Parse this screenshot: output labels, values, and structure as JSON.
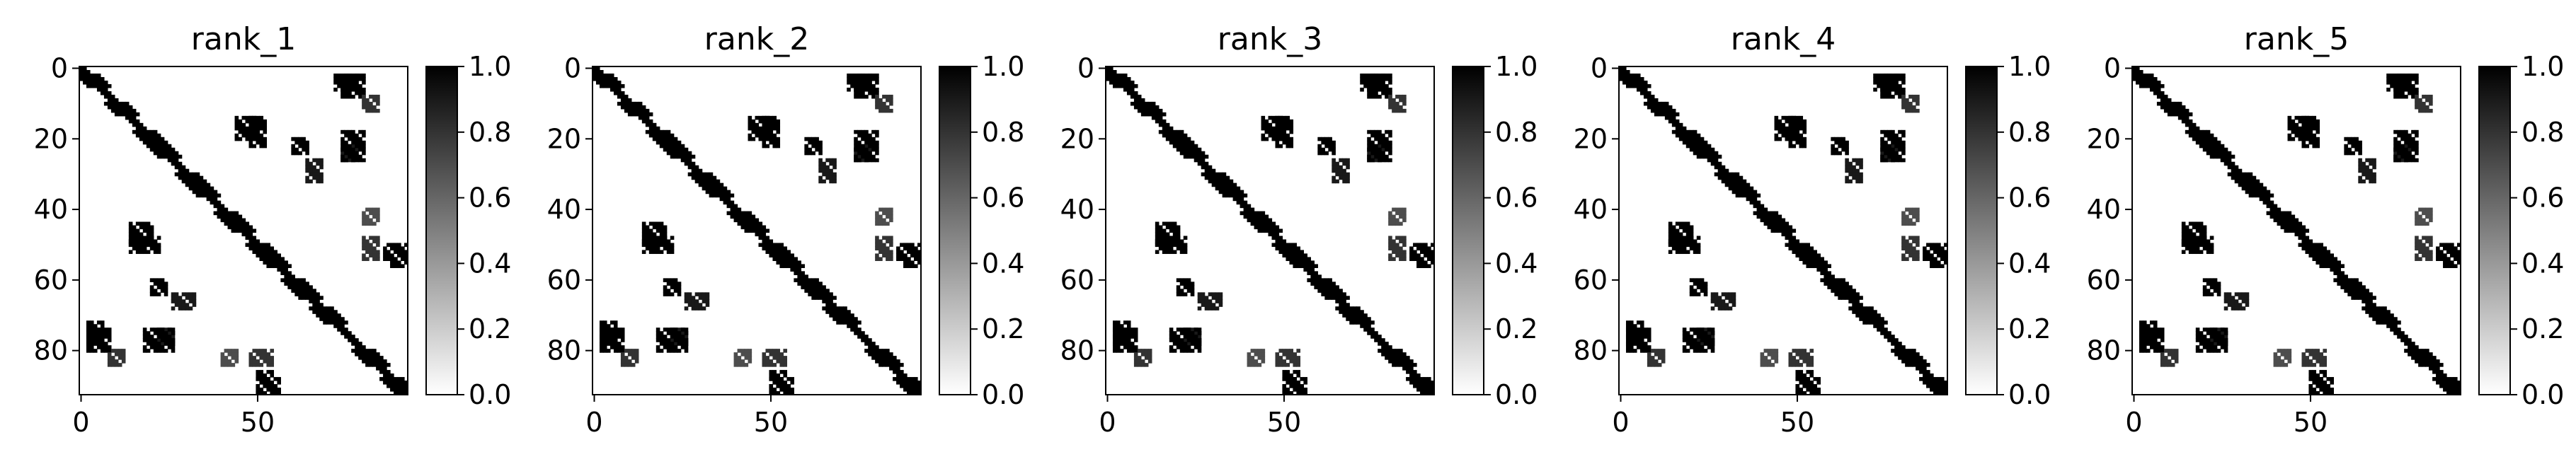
{
  "chart_data": [
    {
      "type": "heatmap",
      "title": "rank_1",
      "matrix_size": 93,
      "xticks": [
        0,
        50
      ],
      "yticks": [
        0,
        20,
        40,
        60,
        80
      ],
      "colorbar": {
        "ticks": [
          "0.0",
          "0.2",
          "0.4",
          "0.6",
          "0.8",
          "1.0"
        ],
        "range": [
          0,
          1
        ]
      },
      "colormap": "gray_r",
      "grid": false,
      "diagonal_band": [
        [
          2,
          5
        ],
        [
          10,
          13
        ],
        [
          18,
          25
        ],
        [
          30,
          36
        ],
        [
          41,
          46
        ],
        [
          50,
          56
        ],
        [
          60,
          65
        ],
        [
          68,
          72
        ],
        [
          80,
          84
        ],
        [
          88,
          92
        ]
      ],
      "off_diagonal_blocks": [
        {
          "rows": [
            2,
            8
          ],
          "cols": [
            74,
            80
          ],
          "v": 1
        },
        {
          "rows": [
            8,
            12
          ],
          "cols": [
            80,
            84
          ],
          "v": 0.8
        },
        {
          "rows": [
            14,
            20
          ],
          "cols": [
            44,
            50
          ],
          "v": 1
        },
        {
          "rows": [
            20,
            24
          ],
          "cols": [
            60,
            64
          ],
          "v": 1
        },
        {
          "rows": [
            22,
            26
          ],
          "cols": [
            74,
            78
          ],
          "v": 0.9
        },
        {
          "rows": [
            40,
            44
          ],
          "cols": [
            80,
            84
          ],
          "v": 0.7
        },
        {
          "rows": [
            48,
            52
          ],
          "cols": [
            14,
            22
          ],
          "v": 1
        },
        {
          "rows": [
            50,
            54
          ],
          "cols": [
            86,
            92
          ],
          "v": 1
        },
        {
          "rows": [
            64,
            68
          ],
          "cols": [
            26,
            32
          ],
          "v": 0.9
        },
        {
          "rows": [
            72,
            78
          ],
          "cols": [
            2,
            6
          ],
          "v": 1
        },
        {
          "rows": [
            74,
            80
          ],
          "cols": [
            18,
            26
          ],
          "v": 1
        },
        {
          "rows": [
            80,
            84
          ],
          "cols": [
            48,
            54
          ],
          "v": 0.8
        },
        {
          "rows": [
            88,
            92
          ],
          "cols": [
            50,
            56
          ],
          "v": 1
        }
      ]
    },
    {
      "type": "heatmap",
      "title": "rank_2",
      "matrix_size": 93,
      "xticks": [
        0,
        50
      ],
      "yticks": [
        0,
        20,
        40,
        60,
        80
      ],
      "colorbar": {
        "ticks": [
          "0.0",
          "0.2",
          "0.4",
          "0.6",
          "0.8",
          "1.0"
        ],
        "range": [
          0,
          1
        ]
      },
      "colormap": "gray_r",
      "grid": false,
      "diagonal_band": [
        [
          2,
          5
        ],
        [
          10,
          13
        ],
        [
          18,
          25
        ],
        [
          30,
          36
        ],
        [
          41,
          46
        ],
        [
          50,
          56
        ],
        [
          60,
          65
        ],
        [
          68,
          72
        ],
        [
          80,
          84
        ],
        [
          88,
          92
        ]
      ],
      "off_diagonal_blocks": [
        {
          "rows": [
            2,
            8
          ],
          "cols": [
            74,
            80
          ],
          "v": 1
        },
        {
          "rows": [
            8,
            12
          ],
          "cols": [
            80,
            84
          ],
          "v": 0.8
        },
        {
          "rows": [
            14,
            20
          ],
          "cols": [
            44,
            50
          ],
          "v": 1
        },
        {
          "rows": [
            20,
            24
          ],
          "cols": [
            60,
            64
          ],
          "v": 1
        },
        {
          "rows": [
            22,
            26
          ],
          "cols": [
            74,
            78
          ],
          "v": 0.9
        },
        {
          "rows": [
            40,
            44
          ],
          "cols": [
            80,
            84
          ],
          "v": 0.7
        },
        {
          "rows": [
            48,
            52
          ],
          "cols": [
            14,
            22
          ],
          "v": 1
        },
        {
          "rows": [
            50,
            54
          ],
          "cols": [
            86,
            92
          ],
          "v": 1
        },
        {
          "rows": [
            64,
            68
          ],
          "cols": [
            26,
            32
          ],
          "v": 0.9
        },
        {
          "rows": [
            72,
            78
          ],
          "cols": [
            2,
            6
          ],
          "v": 1
        },
        {
          "rows": [
            74,
            80
          ],
          "cols": [
            18,
            26
          ],
          "v": 1
        },
        {
          "rows": [
            80,
            84
          ],
          "cols": [
            48,
            54
          ],
          "v": 0.8
        },
        {
          "rows": [
            88,
            92
          ],
          "cols": [
            50,
            56
          ],
          "v": 1
        }
      ]
    },
    {
      "type": "heatmap",
      "title": "rank_3",
      "matrix_size": 93,
      "xticks": [
        0,
        50
      ],
      "yticks": [
        0,
        20,
        40,
        60,
        80
      ],
      "colorbar": {
        "ticks": [
          "0.0",
          "0.2",
          "0.4",
          "0.6",
          "0.8",
          "1.0"
        ],
        "range": [
          0,
          1
        ]
      },
      "colormap": "gray_r",
      "grid": false,
      "diagonal_band": [
        [
          2,
          5
        ],
        [
          10,
          13
        ],
        [
          18,
          25
        ],
        [
          30,
          36
        ],
        [
          41,
          46
        ],
        [
          50,
          56
        ],
        [
          60,
          65
        ],
        [
          68,
          72
        ],
        [
          80,
          84
        ],
        [
          88,
          92
        ]
      ],
      "off_diagonal_blocks": [
        {
          "rows": [
            2,
            8
          ],
          "cols": [
            74,
            80
          ],
          "v": 1
        },
        {
          "rows": [
            8,
            12
          ],
          "cols": [
            80,
            84
          ],
          "v": 0.8
        },
        {
          "rows": [
            14,
            20
          ],
          "cols": [
            44,
            50
          ],
          "v": 1
        },
        {
          "rows": [
            20,
            24
          ],
          "cols": [
            60,
            64
          ],
          "v": 1
        },
        {
          "rows": [
            22,
            26
          ],
          "cols": [
            74,
            78
          ],
          "v": 0.9
        },
        {
          "rows": [
            40,
            44
          ],
          "cols": [
            80,
            84
          ],
          "v": 0.7
        },
        {
          "rows": [
            48,
            52
          ],
          "cols": [
            14,
            22
          ],
          "v": 1
        },
        {
          "rows": [
            50,
            54
          ],
          "cols": [
            86,
            92
          ],
          "v": 1
        },
        {
          "rows": [
            64,
            68
          ],
          "cols": [
            26,
            32
          ],
          "v": 0.9
        },
        {
          "rows": [
            72,
            78
          ],
          "cols": [
            2,
            6
          ],
          "v": 1
        },
        {
          "rows": [
            74,
            80
          ],
          "cols": [
            18,
            26
          ],
          "v": 1
        },
        {
          "rows": [
            80,
            84
          ],
          "cols": [
            48,
            54
          ],
          "v": 0.8
        },
        {
          "rows": [
            88,
            92
          ],
          "cols": [
            50,
            56
          ],
          "v": 1
        }
      ]
    },
    {
      "type": "heatmap",
      "title": "rank_4",
      "matrix_size": 93,
      "xticks": [
        0,
        50
      ],
      "yticks": [
        0,
        20,
        40,
        60,
        80
      ],
      "colorbar": {
        "ticks": [
          "0.0",
          "0.2",
          "0.4",
          "0.6",
          "0.8",
          "1.0"
        ],
        "range": [
          0,
          1
        ]
      },
      "colormap": "gray_r",
      "grid": false,
      "diagonal_band": [
        [
          2,
          5
        ],
        [
          10,
          13
        ],
        [
          18,
          25
        ],
        [
          30,
          36
        ],
        [
          41,
          46
        ],
        [
          50,
          56
        ],
        [
          60,
          65
        ],
        [
          68,
          72
        ],
        [
          80,
          84
        ],
        [
          88,
          92
        ]
      ],
      "off_diagonal_blocks": [
        {
          "rows": [
            2,
            8
          ],
          "cols": [
            74,
            80
          ],
          "v": 1
        },
        {
          "rows": [
            8,
            12
          ],
          "cols": [
            80,
            84
          ],
          "v": 0.8
        },
        {
          "rows": [
            14,
            20
          ],
          "cols": [
            44,
            50
          ],
          "v": 1
        },
        {
          "rows": [
            20,
            24
          ],
          "cols": [
            60,
            64
          ],
          "v": 1
        },
        {
          "rows": [
            22,
            26
          ],
          "cols": [
            74,
            78
          ],
          "v": 0.9
        },
        {
          "rows": [
            40,
            44
          ],
          "cols": [
            80,
            84
          ],
          "v": 0.7
        },
        {
          "rows": [
            48,
            52
          ],
          "cols": [
            14,
            22
          ],
          "v": 1
        },
        {
          "rows": [
            50,
            54
          ],
          "cols": [
            86,
            92
          ],
          "v": 1
        },
        {
          "rows": [
            64,
            68
          ],
          "cols": [
            26,
            32
          ],
          "v": 0.9
        },
        {
          "rows": [
            72,
            78
          ],
          "cols": [
            2,
            6
          ],
          "v": 1
        },
        {
          "rows": [
            74,
            80
          ],
          "cols": [
            18,
            26
          ],
          "v": 1
        },
        {
          "rows": [
            80,
            84
          ],
          "cols": [
            48,
            54
          ],
          "v": 0.8
        },
        {
          "rows": [
            88,
            92
          ],
          "cols": [
            50,
            56
          ],
          "v": 1
        }
      ]
    },
    {
      "type": "heatmap",
      "title": "rank_5",
      "matrix_size": 93,
      "xticks": [
        0,
        50
      ],
      "yticks": [
        0,
        20,
        40,
        60,
        80
      ],
      "colorbar": {
        "ticks": [
          "0.0",
          "0.2",
          "0.4",
          "0.6",
          "0.8",
          "1.0"
        ],
        "range": [
          0,
          1
        ]
      },
      "colormap": "gray_r",
      "grid": false,
      "diagonal_band": [
        [
          2,
          5
        ],
        [
          10,
          13
        ],
        [
          18,
          25
        ],
        [
          30,
          36
        ],
        [
          41,
          46
        ],
        [
          50,
          56
        ],
        [
          60,
          65
        ],
        [
          68,
          72
        ],
        [
          80,
          84
        ],
        [
          88,
          92
        ]
      ],
      "off_diagonal_blocks": [
        {
          "rows": [
            2,
            8
          ],
          "cols": [
            74,
            80
          ],
          "v": 1
        },
        {
          "rows": [
            8,
            12
          ],
          "cols": [
            80,
            84
          ],
          "v": 0.8
        },
        {
          "rows": [
            14,
            20
          ],
          "cols": [
            44,
            50
          ],
          "v": 1
        },
        {
          "rows": [
            20,
            24
          ],
          "cols": [
            60,
            64
          ],
          "v": 1
        },
        {
          "rows": [
            22,
            26
          ],
          "cols": [
            74,
            78
          ],
          "v": 0.9
        },
        {
          "rows": [
            40,
            44
          ],
          "cols": [
            80,
            84
          ],
          "v": 0.7
        },
        {
          "rows": [
            48,
            52
          ],
          "cols": [
            14,
            22
          ],
          "v": 1
        },
        {
          "rows": [
            50,
            54
          ],
          "cols": [
            86,
            92
          ],
          "v": 1
        },
        {
          "rows": [
            64,
            68
          ],
          "cols": [
            26,
            32
          ],
          "v": 0.9
        },
        {
          "rows": [
            72,
            78
          ],
          "cols": [
            2,
            6
          ],
          "v": 1
        },
        {
          "rows": [
            74,
            80
          ],
          "cols": [
            18,
            26
          ],
          "v": 1
        },
        {
          "rows": [
            80,
            84
          ],
          "cols": [
            48,
            54
          ],
          "v": 0.8
        },
        {
          "rows": [
            88,
            92
          ],
          "cols": [
            50,
            56
          ],
          "v": 1
        }
      ]
    }
  ]
}
